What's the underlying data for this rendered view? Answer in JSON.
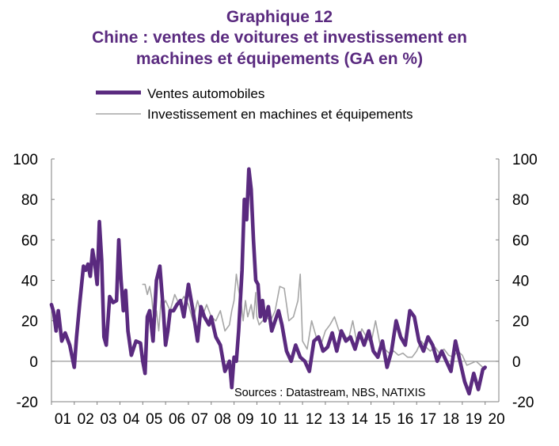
{
  "header": {
    "title": "Graphique  12",
    "subtitle_line1": "Chine : ventes de voitures et investissement en",
    "subtitle_line2": "machines et équipements (GA en %)"
  },
  "source_note": "Sources : Datastream,  NBS, NATIXIS",
  "colors": {
    "primary": "#5a2a7f",
    "secondary": "#a6a6a6",
    "axis": "#7f7f7f"
  },
  "chart_data": {
    "type": "line",
    "title": "Chine : ventes de voitures et investissement en machines et équipements (GA en %)",
    "x_tick_labels": [
      "01",
      "02",
      "03",
      "04",
      "05",
      "06",
      "07",
      "08",
      "09",
      "10",
      "11",
      "12",
      "13",
      "14",
      "15",
      "16",
      "17",
      "18",
      "19",
      "20"
    ],
    "xlim": [
      2001.0,
      2020.6
    ],
    "ylim": [
      -20,
      100
    ],
    "y_ticks": [
      -20,
      0,
      20,
      40,
      60,
      80,
      100
    ],
    "y_tick_labels": [
      "-20",
      "0",
      "20",
      "40",
      "60",
      "80",
      "100"
    ],
    "grid": false,
    "legend_position": "top-left",
    "series": [
      {
        "name": "Ventes automobiles",
        "color": "#5a2a7f",
        "x": [
          2001.0,
          2001.1,
          2001.2,
          2001.3,
          2001.45,
          2001.6,
          2001.8,
          2002.0,
          2002.1,
          2002.25,
          2002.4,
          2002.5,
          2002.6,
          2002.7,
          2002.8,
          2002.9,
          2003.0,
          2003.1,
          2003.2,
          2003.3,
          2003.4,
          2003.55,
          2003.7,
          2003.85,
          2003.95,
          2004.05,
          2004.15,
          2004.25,
          2004.35,
          2004.5,
          2004.7,
          2004.9,
          2005.0,
          2005.1,
          2005.2,
          2005.3,
          2005.45,
          2005.6,
          2005.75,
          2005.9,
          2006.0,
          2006.1,
          2006.2,
          2006.35,
          2006.5,
          2006.65,
          2006.8,
          2007.0,
          2007.2,
          2007.4,
          2007.55,
          2007.7,
          2007.9,
          2008.0,
          2008.2,
          2008.4,
          2008.6,
          2008.8,
          2008.9,
          2009.0,
          2009.1,
          2009.2,
          2009.35,
          2009.45,
          2009.55,
          2009.65,
          2009.75,
          2009.85,
          2009.95,
          2010.05,
          2010.15,
          2010.25,
          2010.35,
          2010.5,
          2010.65,
          2010.8,
          2010.95,
          2011.1,
          2011.3,
          2011.5,
          2011.7,
          2011.9,
          2012.1,
          2012.3,
          2012.5,
          2012.7,
          2012.9,
          2013.1,
          2013.3,
          2013.5,
          2013.7,
          2013.9,
          2014.1,
          2014.3,
          2014.5,
          2014.7,
          2014.9,
          2015.1,
          2015.3,
          2015.5,
          2015.7,
          2015.9,
          2016.1,
          2016.3,
          2016.5,
          2016.7,
          2016.9,
          2017.1,
          2017.3,
          2017.5,
          2017.7,
          2017.9,
          2018.1,
          2018.3,
          2018.5,
          2018.7,
          2018.9,
          2019.1,
          2019.3,
          2019.5,
          2019.7,
          2019.9,
          2020.0
        ],
        "y": [
          28,
          24,
          15,
          25,
          10,
          14,
          8,
          -3,
          12,
          30,
          47,
          45,
          48,
          42,
          55,
          48,
          38,
          69,
          50,
          12,
          8,
          32,
          29,
          30,
          60,
          40,
          25,
          35,
          15,
          3,
          10,
          9,
          0,
          -6,
          22,
          25,
          10,
          40,
          47,
          25,
          8,
          15,
          25,
          25,
          28,
          30,
          22,
          38,
          25,
          10,
          27,
          22,
          18,
          22,
          12,
          8,
          -5,
          0,
          -13,
          2,
          0,
          15,
          45,
          80,
          70,
          95,
          85,
          60,
          40,
          38,
          22,
          30,
          20,
          27,
          15,
          20,
          25,
          18,
          5,
          0,
          8,
          2,
          0,
          -5,
          10,
          12,
          5,
          7,
          14,
          5,
          15,
          10,
          12,
          6,
          14,
          8,
          15,
          5,
          2,
          10,
          -3,
          5,
          20,
          12,
          8,
          25,
          22,
          10,
          5,
          12,
          8,
          0,
          5,
          0,
          -5,
          10,
          0,
          -10,
          -16,
          -6,
          -14,
          -4,
          -3
        ]
      },
      {
        "name": "Investissement en machines et équipements",
        "color": "#a6a6a6",
        "x": [
          2005.0,
          2005.1,
          2005.2,
          2005.3,
          2005.4,
          2005.5,
          2005.6,
          2005.7,
          2005.8,
          2005.9,
          2006.0,
          2006.2,
          2006.4,
          2006.6,
          2006.8,
          2007.0,
          2007.2,
          2007.4,
          2007.6,
          2007.8,
          2008.0,
          2008.2,
          2008.4,
          2008.6,
          2008.8,
          2008.9,
          2009.0,
          2009.1,
          2009.2,
          2009.3,
          2009.4,
          2009.5,
          2009.6,
          2009.75,
          2009.85,
          2009.95,
          2010.0,
          2010.1,
          2010.25,
          2010.4,
          2010.6,
          2010.8,
          2011.0,
          2011.2,
          2011.4,
          2011.6,
          2011.8,
          2011.9,
          2012.0,
          2012.2,
          2012.4,
          2012.6,
          2012.8,
          2013.0,
          2013.2,
          2013.4,
          2013.6,
          2013.8,
          2014.0,
          2014.2,
          2014.4,
          2014.6,
          2014.8,
          2015.0,
          2015.2,
          2015.4,
          2015.6,
          2015.8,
          2016.0,
          2016.2,
          2016.4,
          2016.6,
          2016.8,
          2017.0,
          2017.2,
          2017.4,
          2017.6,
          2017.8,
          2018.0,
          2018.2,
          2018.4,
          2018.6,
          2018.8,
          2019.0,
          2019.2,
          2019.4,
          2019.6,
          2019.8,
          2020.0
        ],
        "y": [
          38,
          38,
          33,
          37,
          31,
          18,
          25,
          15,
          30,
          28,
          30,
          25,
          33,
          28,
          32,
          28,
          20,
          30,
          22,
          28,
          22,
          20,
          25,
          15,
          18,
          25,
          30,
          43,
          35,
          30,
          20,
          30,
          22,
          28,
          21,
          34,
          22,
          18,
          20,
          22,
          20,
          25,
          37,
          36,
          20,
          22,
          30,
          43,
          10,
          6,
          20,
          12,
          8,
          15,
          18,
          22,
          15,
          14,
          10,
          20,
          8,
          16,
          12,
          9,
          20,
          8,
          6,
          4,
          5,
          3,
          4,
          2,
          2,
          5,
          10,
          7,
          5,
          7,
          4,
          6,
          3,
          2,
          5,
          3,
          -2,
          -1,
          0,
          -2,
          -4
        ]
      }
    ]
  }
}
